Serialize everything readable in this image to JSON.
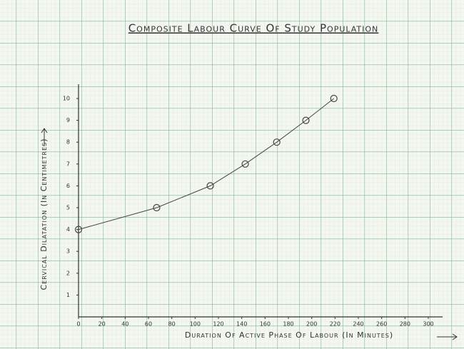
{
  "chart_data": {
    "type": "line",
    "title": "Composite Labour Curve Of Study Population",
    "x_label": "Duration Of Active Phase Of Labour (In Minutes)",
    "y_label": "Cervical Dilatation (In Centimetres)",
    "x": [
      0,
      67,
      113,
      143,
      170,
      195,
      219
    ],
    "series": [
      {
        "name": "Cervical Dilatation",
        "color": "#444444",
        "values": [
          4,
          5,
          6,
          7,
          8,
          9,
          10
        ]
      }
    ],
    "xlim": [
      0,
      300
    ],
    "xticks": [
      0,
      20,
      40,
      60,
      80,
      100,
      120,
      140,
      160,
      180,
      200,
      220,
      240,
      260,
      280,
      300
    ],
    "ylim": [
      0,
      10
    ],
    "yticks": [
      1,
      2,
      3,
      4,
      5,
      6,
      7,
      8,
      9,
      10
    ],
    "grid": true
  }
}
